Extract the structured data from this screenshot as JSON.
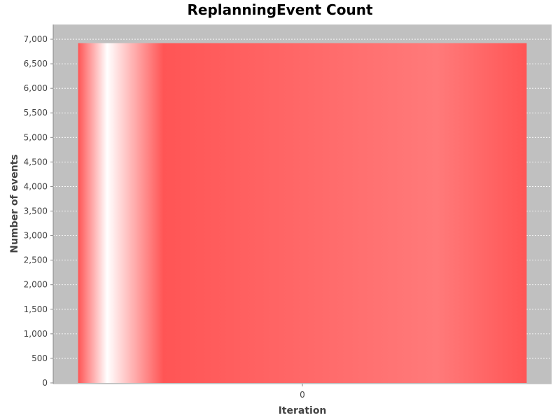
{
  "chart_data": {
    "type": "bar",
    "title": "ReplanningEvent Count",
    "xlabel": "Iteration",
    "ylabel": "Number of events",
    "categories": [
      "0"
    ],
    "values": [
      6920
    ],
    "ylim": [
      0,
      7300
    ],
    "yticks": [
      0,
      500,
      1000,
      1500,
      2000,
      2500,
      3000,
      3500,
      4000,
      4500,
      5000,
      5500,
      6000,
      6500,
      7000
    ],
    "ytick_labels": [
      "0",
      "500",
      "1,000",
      "1,500",
      "2,000",
      "2,500",
      "3,000",
      "3,500",
      "4,000",
      "4,500",
      "5,000",
      "5,500",
      "6,000",
      "6,500",
      "7,000"
    ],
    "grid": true,
    "legend": "none",
    "colors": {
      "plot_background": "#c0c0c0",
      "bar": "#ff5555",
      "gridline": "#ffffff",
      "axis": "#888888"
    }
  }
}
